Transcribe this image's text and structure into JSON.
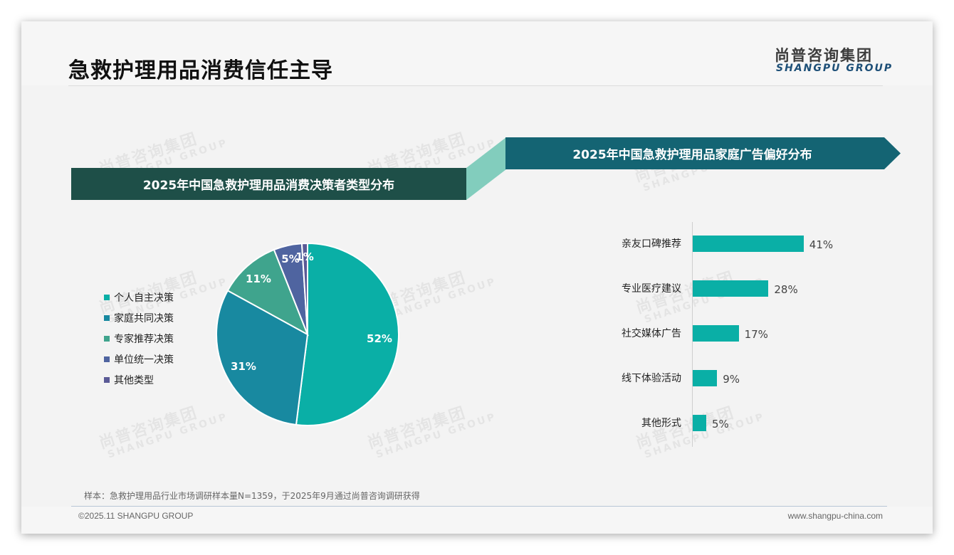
{
  "header": {
    "title": "急救护理用品消费信任主导",
    "logo_cn": "尚普咨询集团",
    "logo_en": "SHANGPU GROUP"
  },
  "watermark": {
    "cn": "尚普咨询集团",
    "en": "SHANGPU GROUP"
  },
  "colors": {
    "banner_left": "#1e4f48",
    "banner_right": "#146473",
    "connector": "#82cdbd",
    "bar": "#0aafa6"
  },
  "chart_data": [
    {
      "type": "pie",
      "title": "2025年中国急救护理用品消费决策者类型分布",
      "categories": [
        "个人自主决策",
        "家庭共同决策",
        "专家推荐决策",
        "单位统一决策",
        "其他类型"
      ],
      "values": [
        52,
        31,
        11,
        5,
        1
      ],
      "labels": [
        "52%",
        "31%",
        "11%",
        "5%",
        "1%"
      ],
      "colors": [
        "#0aafa6",
        "#1889a0",
        "#3fa48d",
        "#4f64a0",
        "#5a5a96"
      ],
      "legend_position": "left"
    },
    {
      "type": "bar",
      "orientation": "horizontal",
      "title": "2025年中国急救护理用品家庭广告偏好分布",
      "categories": [
        "亲友口碑推荐",
        "专业医疗建议",
        "社交媒体广告",
        "线下体验活动",
        "其他形式"
      ],
      "values": [
        41,
        28,
        17,
        9,
        5
      ],
      "labels": [
        "41%",
        "28%",
        "17%",
        "9%",
        "5%"
      ],
      "color": "#0aafa6",
      "grid": false
    }
  ],
  "pie": {
    "title": "2025年中国急救护理用品消费决策者类型分布",
    "legend": [
      {
        "label": "个人自主决策",
        "color": "#0aafa6"
      },
      {
        "label": "家庭共同决策",
        "color": "#1889a0"
      },
      {
        "label": "专家推荐决策",
        "color": "#3fa48d"
      },
      {
        "label": "单位统一决策",
        "color": "#4f64a0"
      },
      {
        "label": "其他类型",
        "color": "#5a5a96"
      }
    ],
    "slice_labels": [
      "52%",
      "31%",
      "11%",
      "5%",
      "1%"
    ]
  },
  "bars": {
    "title": "2025年中国急救护理用品家庭广告偏好分布",
    "items": [
      {
        "label": "亲友口碑推荐",
        "value": 41,
        "text": "41%"
      },
      {
        "label": "专业医疗建议",
        "value": 28,
        "text": "28%"
      },
      {
        "label": "社交媒体广告",
        "value": 17,
        "text": "17%"
      },
      {
        "label": "线下体验活动",
        "value": 9,
        "text": "9%"
      },
      {
        "label": "其他形式",
        "value": 5,
        "text": "5%"
      }
    ]
  },
  "footer": {
    "note": "样本：急救护理用品行业市场调研样本量N=1359，于2025年9月通过尚普咨询调研获得",
    "copyright": "©2025.11 SHANGPU GROUP",
    "url": "www.shangpu-china.com"
  }
}
